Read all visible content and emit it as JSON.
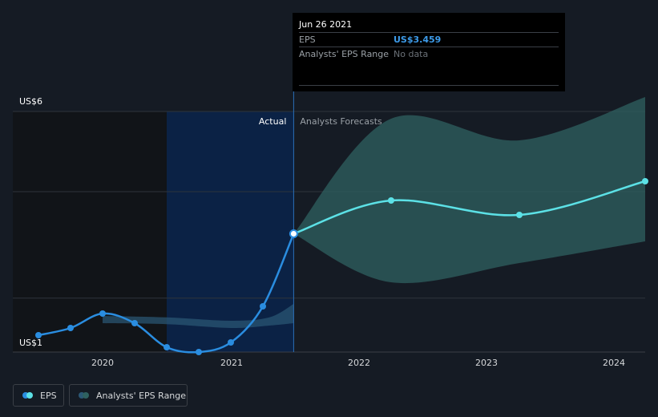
{
  "chart_data": {
    "type": "line",
    "x_ticks": [
      "2020",
      "2021",
      "2022",
      "2023",
      "2024"
    ],
    "y_ticks": [
      "US$6",
      "US$1"
    ],
    "ylim": [
      1,
      6
    ],
    "section_labels": {
      "actual": "Actual",
      "forecast": "Analysts Forecasts"
    },
    "series": [
      {
        "name": "EPS",
        "type": "actual",
        "x": [
          2019.5,
          2019.75,
          2020.0,
          2020.25,
          2020.5,
          2020.75,
          2021.0,
          2021.25,
          2021.49
        ],
        "y": [
          1.35,
          1.5,
          1.8,
          1.6,
          1.1,
          1.0,
          1.2,
          1.95,
          3.459
        ]
      },
      {
        "name": "EPS",
        "type": "forecast",
        "x": [
          2021.49,
          2022.25,
          2023.25,
          2024.25
        ],
        "y": [
          3.459,
          4.15,
          3.85,
          4.55
        ]
      }
    ],
    "range_band": {
      "name": "Analysts' EPS Range",
      "actual": {
        "x": [
          2020.0,
          2020.5,
          2021.0,
          2021.3,
          2021.49
        ],
        "high": [
          1.75,
          1.72,
          1.65,
          1.72,
          2.0
        ],
        "low": [
          1.6,
          1.58,
          1.5,
          1.55,
          1.6
        ]
      },
      "forecast": {
        "x": [
          2021.49,
          2022.25,
          2023.25,
          2024.25
        ],
        "high": [
          3.459,
          5.85,
          5.4,
          6.3
        ],
        "low": [
          3.459,
          2.45,
          2.85,
          3.3
        ]
      }
    },
    "highlight": {
      "x": 2021.49,
      "y": 3.459
    },
    "tooltip": {
      "date": "Jun 26 2021",
      "eps_label": "EPS",
      "eps_value": "US$3.459",
      "range_label": "Analysts' EPS Range",
      "range_value": "No data"
    },
    "legend": [
      "EPS",
      "Analysts' EPS Range"
    ],
    "colors": {
      "eps_actual": "#2a8de0",
      "eps_forecast": "#5ce1e6",
      "range_forecast": "#2f6160",
      "range_actual": "#2b5876",
      "highlight_region": "#0b2245",
      "past_region": "#111418"
    },
    "grid": true
  }
}
